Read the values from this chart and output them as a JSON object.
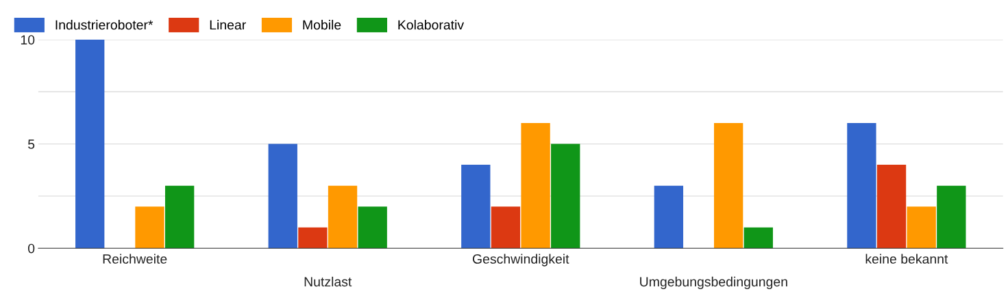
{
  "chart_data": {
    "type": "bar",
    "categories": [
      "Reichweite",
      "Nutzlast",
      "Geschwindigkeit",
      "Umgebungsbedingungen",
      "keine bekannt"
    ],
    "series": [
      {
        "name": "Industrieroboter*",
        "color": "#3366cc",
        "values": [
          10,
          5,
          4,
          3,
          6
        ]
      },
      {
        "name": "Linear",
        "color": "#dc3912",
        "values": [
          0,
          1,
          2,
          0,
          4
        ]
      },
      {
        "name": "Mobile",
        "color": "#ff9900",
        "values": [
          2,
          3,
          6,
          6,
          2
        ]
      },
      {
        "name": "Kolaborativ",
        "color": "#109618",
        "values": [
          3,
          2,
          5,
          1,
          3
        ]
      }
    ],
    "ylim": [
      0,
      10
    ],
    "yticks": [
      0,
      {
        "value": 2.5,
        "label": null
      },
      5,
      {
        "value": 7.5,
        "label": null
      },
      10
    ],
    "grid": "y",
    "legend": "top left"
  }
}
